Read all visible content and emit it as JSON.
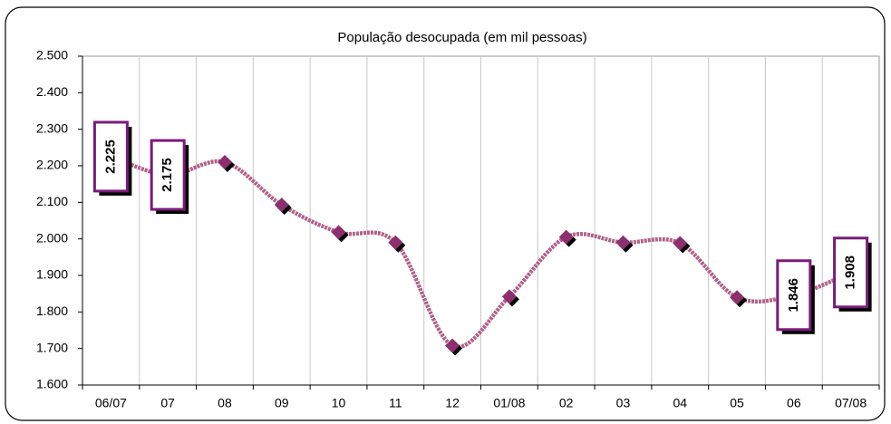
{
  "chart_data": {
    "type": "line",
    "title": "População desocupada (em mil pessoas)",
    "categories": [
      "06/07",
      "07",
      "08",
      "09",
      "10",
      "11",
      "12",
      "01/08",
      "02",
      "03",
      "04",
      "05",
      "06",
      "07/08"
    ],
    "values": [
      2225,
      2175,
      2210,
      2093,
      2018,
      1990,
      1708,
      1842,
      2005,
      1990,
      1988,
      1840,
      1846,
      1908
    ],
    "value_labels": [
      "2.225",
      "2.175",
      null,
      null,
      null,
      null,
      null,
      null,
      null,
      null,
      null,
      null,
      "1.846",
      "1.908"
    ],
    "color": "#b0628a",
    "marker_color": "#8c2f6e",
    "label_border_color": "#7a1a7a",
    "ylim": [
      1600,
      2500
    ],
    "yticks": [
      {
        "value": 1600,
        "label": "1.600"
      },
      {
        "value": 1700,
        "label": "1.700"
      },
      {
        "value": 1800,
        "label": "1.800"
      },
      {
        "value": 1900,
        "label": "1.900"
      },
      {
        "value": 2000,
        "label": "2.000"
      },
      {
        "value": 2100,
        "label": "2.100"
      },
      {
        "value": 2200,
        "label": "2.200"
      },
      {
        "value": 2300,
        "label": "2.300"
      },
      {
        "value": 2400,
        "label": "2.400"
      },
      {
        "value": 2500,
        "label": "2.500"
      }
    ],
    "grid": true
  }
}
